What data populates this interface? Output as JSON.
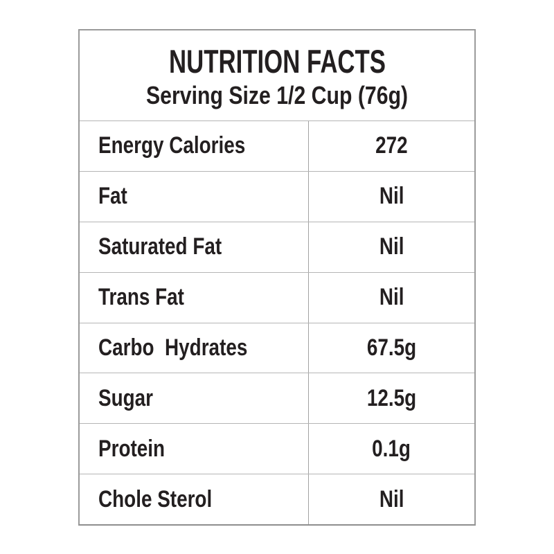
{
  "nutrition_label": {
    "title": "NUTRITION FACTS",
    "subtitle": "Serving Size 1/2 Cup (76g)",
    "rows": [
      {
        "label": "Energy Calories",
        "value": "272"
      },
      {
        "label": "Fat",
        "value": "Nil"
      },
      {
        "label": "Saturated Fat",
        "value": "Nil"
      },
      {
        "label": "Trans Fat",
        "value": "Nil"
      },
      {
        "label": "Carbo  Hydrates",
        "value": "67.5g"
      },
      {
        "label": "Sugar",
        "value": "12.5g"
      },
      {
        "label": "Protein",
        "value": "0.1g"
      },
      {
        "label": "Chole Sterol",
        "value": "Nil"
      }
    ],
    "colors": {
      "text": "#231f20",
      "outer_border": "#9a9a9a",
      "inner_lines": "#b5b5b5",
      "background": "#ffffff"
    }
  }
}
